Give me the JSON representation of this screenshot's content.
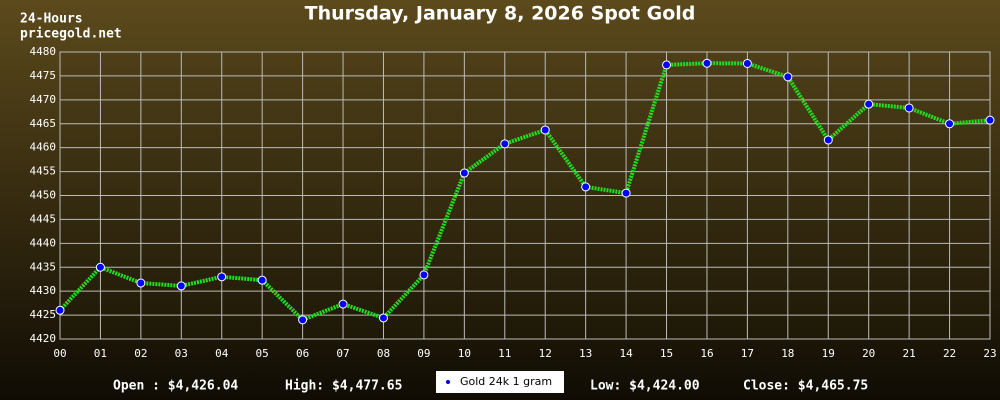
{
  "chart_data": {
    "type": "line",
    "title": "Thursday, January 8, 2026 Spot Gold",
    "corner_text": [
      "24-Hours",
      "pricegold.net"
    ],
    "categories": [
      "00",
      "01",
      "02",
      "03",
      "04",
      "05",
      "06",
      "07",
      "08",
      "09",
      "10",
      "11",
      "12",
      "13",
      "14",
      "15",
      "16",
      "17",
      "18",
      "19",
      "20",
      "21",
      "22",
      "23"
    ],
    "series": [
      {
        "name": "Gold 24k 1 gram",
        "color": "#22dd22",
        "marker_color": "#0000ff",
        "values": [
          4426,
          4435,
          4431.7,
          4431.1,
          4433,
          4432.3,
          4424,
          4427.3,
          4424.4,
          4433.4,
          4454.7,
          4460.8,
          4463.7,
          4451.8,
          4450.5,
          4477.3,
          4477.65,
          4477.6,
          4474.8,
          4461.6,
          4469.1,
          4468.3,
          4465,
          4465.75
        ]
      }
    ],
    "ylim": [
      4420,
      4480
    ],
    "yticks": [
      4420,
      4425,
      4430,
      4435,
      4440,
      4445,
      4450,
      4455,
      4460,
      4465,
      4470,
      4475,
      4480
    ],
    "grid": true,
    "stats": [
      "Open : $4,426.04",
      "High: $4,477.65",
      "Low: $4,424.00",
      "Close: $4,465.75"
    ]
  }
}
